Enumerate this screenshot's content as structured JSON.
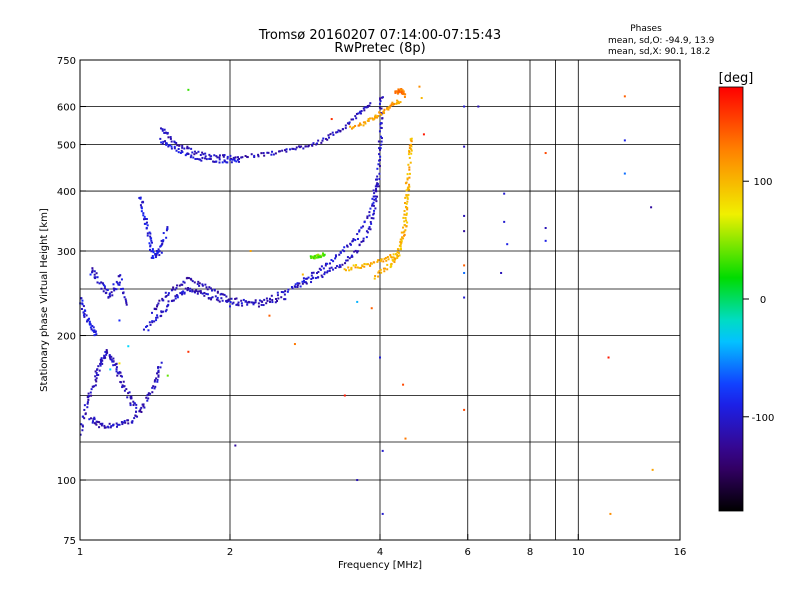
{
  "header": {
    "title_line1": "Tromsø 20160207 07:14:00-07:15:43",
    "title_line2": "RwPretec (8p)"
  },
  "stats": {
    "heading": "Phases",
    "line_o": "mean, sd,O: -94.9, 13.9",
    "line_x": "mean, sd,X:  90.1, 18.2"
  },
  "colorbar": {
    "label": "[deg]",
    "range": [
      -180,
      180
    ],
    "ticks": [
      {
        "value": 100,
        "label": "100"
      },
      {
        "value": 0,
        "label": "0"
      },
      {
        "value": -100,
        "label": "-100"
      }
    ]
  },
  "chart_data": {
    "type": "scatter",
    "title": "Tromsø 20160207 07:14:00-07:15:43",
    "subtitle": "RwPretec (8p)",
    "xlabel": "Frequency [MHz]",
    "ylabel": "Stationary phase Virtual Height [km]",
    "x_scale": "log",
    "y_scale": "log",
    "xlim": [
      1,
      16
    ],
    "ylim": [
      75,
      750
    ],
    "grid": true,
    "x_ticks": [
      {
        "value": 1,
        "label": "1"
      },
      {
        "value": 2,
        "label": "2"
      },
      {
        "value": 4,
        "label": "4"
      },
      {
        "value": 6,
        "label": "6"
      },
      {
        "value": 8,
        "label": "8"
      },
      {
        "value": 10,
        "label": "10"
      },
      {
        "value": 16,
        "label": "16"
      }
    ],
    "y_ticks": [
      {
        "value": 75,
        "label": "75"
      },
      {
        "value": 100,
        "label": "100"
      },
      {
        "value": 200,
        "label": "200"
      },
      {
        "value": 300,
        "label": "300"
      },
      {
        "value": 400,
        "label": "400"
      },
      {
        "value": 500,
        "label": "500"
      },
      {
        "value": 600,
        "label": "600"
      },
      {
        "value": 750,
        "label": "750"
      }
    ],
    "x_grid": [
      1,
      2,
      4,
      6,
      8,
      9,
      10,
      16
    ],
    "y_grid": [
      75,
      100,
      120,
      150,
      200,
      250,
      300,
      400,
      500,
      600,
      750
    ],
    "color_variable": "phase (deg)",
    "traces": [
      {
        "phase": -110,
        "spread": 0.018,
        "points": [
          [
            1.0,
            125
          ],
          [
            1.03,
            145
          ],
          [
            1.07,
            160
          ],
          [
            1.1,
            175
          ],
          [
            1.13,
            185
          ],
          [
            1.16,
            178
          ],
          [
            1.2,
            165
          ],
          [
            1.25,
            150
          ],
          [
            1.3,
            140
          ]
        ]
      },
      {
        "phase": -108,
        "spread": 0.015,
        "points": [
          [
            1.05,
            135
          ],
          [
            1.1,
            130
          ],
          [
            1.18,
            130
          ],
          [
            1.28,
            133
          ],
          [
            1.35,
            145
          ],
          [
            1.42,
            160
          ],
          [
            1.45,
            175
          ]
        ]
      },
      {
        "phase": -105,
        "spread": 0.014,
        "points": [
          [
            1.35,
            205
          ],
          [
            1.45,
            222
          ],
          [
            1.55,
            240
          ],
          [
            1.65,
            250
          ],
          [
            1.75,
            245
          ],
          [
            1.9,
            238
          ],
          [
            2.1,
            232
          ],
          [
            2.4,
            238
          ],
          [
            2.7,
            252
          ],
          [
            3.0,
            265
          ],
          [
            3.3,
            278
          ],
          [
            3.6,
            300
          ],
          [
            3.85,
            340
          ],
          [
            3.95,
            400
          ],
          [
            4.0,
            480
          ],
          [
            4.02,
            560
          ],
          [
            4.03,
            640
          ]
        ]
      },
      {
        "phase": -112,
        "spread": 0.012,
        "points": [
          [
            1.4,
            225
          ],
          [
            1.5,
            245
          ],
          [
            1.65,
            262
          ],
          [
            1.8,
            252
          ],
          [
            2.0,
            238
          ],
          [
            2.3,
            232
          ],
          [
            2.6,
            240
          ]
        ]
      },
      {
        "phase": -100,
        "spread": 0.011,
        "points": [
          [
            2.7,
            255
          ],
          [
            3.0,
            272
          ],
          [
            3.3,
            295
          ],
          [
            3.6,
            320
          ],
          [
            3.85,
            370
          ],
          [
            3.95,
            430
          ]
        ]
      },
      {
        "phase": -110,
        "spread": 0.012,
        "points": [
          [
            1.45,
            545
          ],
          [
            1.55,
            505
          ],
          [
            1.7,
            480
          ],
          [
            1.9,
            472
          ],
          [
            2.1,
            470
          ],
          [
            2.4,
            478
          ],
          [
            2.7,
            490
          ],
          [
            3.0,
            505
          ],
          [
            3.3,
            530
          ],
          [
            3.6,
            575
          ],
          [
            3.85,
            610
          ]
        ]
      },
      {
        "phase": -100,
        "spread": 0.01,
        "points": [
          [
            1.45,
            510
          ],
          [
            1.55,
            490
          ],
          [
            1.7,
            468
          ],
          [
            1.9,
            462
          ],
          [
            2.1,
            462
          ]
        ]
      },
      {
        "phase": -95,
        "spread": 0.016,
        "points": [
          [
            1.32,
            390
          ],
          [
            1.35,
            350
          ],
          [
            1.38,
            320
          ],
          [
            1.4,
            290
          ],
          [
            1.45,
            300
          ],
          [
            1.5,
            340
          ]
        ]
      },
      {
        "phase": -105,
        "spread": 0.02,
        "points": [
          [
            1.05,
            275
          ],
          [
            1.1,
            255
          ],
          [
            1.15,
            240
          ],
          [
            1.2,
            265
          ],
          [
            1.25,
            228
          ]
        ]
      },
      {
        "phase": -95,
        "spread": 0.015,
        "points": [
          [
            1.0,
            240
          ],
          [
            1.02,
            220
          ],
          [
            1.05,
            210
          ],
          [
            1.08,
            200
          ]
        ]
      },
      {
        "phase": 105,
        "spread": 0.012,
        "points": [
          [
            3.4,
            275
          ],
          [
            3.7,
            280
          ],
          [
            4.0,
            285
          ],
          [
            4.3,
            295
          ],
          [
            4.5,
            330
          ],
          [
            4.55,
            400
          ],
          [
            4.6,
            480
          ],
          [
            4.62,
            520
          ]
        ]
      },
      {
        "phase": 100,
        "spread": 0.014,
        "points": [
          [
            3.9,
            265
          ],
          [
            4.2,
            280
          ],
          [
            4.4,
            300
          ],
          [
            4.5,
            360
          ],
          [
            4.55,
            430
          ]
        ]
      },
      {
        "phase": 110,
        "spread": 0.012,
        "points": [
          [
            3.5,
            540
          ],
          [
            3.8,
            560
          ],
          [
            4.0,
            580
          ],
          [
            4.2,
            600
          ],
          [
            4.4,
            620
          ]
        ]
      },
      {
        "phase": 40,
        "spread": 0.01,
        "points": [
          [
            2.9,
            290
          ],
          [
            3.0,
            292
          ],
          [
            3.1,
            295
          ]
        ]
      },
      {
        "phase": 130,
        "spread": 0.01,
        "points": [
          [
            4.3,
            640
          ],
          [
            4.4,
            650
          ],
          [
            4.5,
            630
          ]
        ]
      }
    ],
    "scattered_points": [
      [
        1.65,
        650,
        30
      ],
      [
        2.05,
        118,
        -120
      ],
      [
        2.7,
        192,
        130
      ],
      [
        3.4,
        150,
        170
      ],
      [
        3.6,
        235,
        -40
      ],
      [
        3.6,
        100,
        -110
      ],
      [
        3.85,
        228,
        140
      ],
      [
        4.05,
        85,
        -100
      ],
      [
        4.5,
        122,
        130
      ],
      [
        5.9,
        140,
        150
      ],
      [
        5.9,
        240,
        -100
      ],
      [
        5.9,
        355,
        -110
      ],
      [
        5.9,
        330,
        -120
      ],
      [
        7.1,
        345,
        -100
      ],
      [
        7.1,
        395,
        -100
      ],
      [
        7.2,
        310,
        -90
      ],
      [
        8.6,
        480,
        150
      ],
      [
        8.6,
        335,
        -110
      ],
      [
        8.6,
        315,
        -90
      ],
      [
        11.5,
        180,
        170
      ],
      [
        11.6,
        85,
        120
      ],
      [
        12.4,
        630,
        140
      ],
      [
        12.4,
        510,
        -90
      ],
      [
        12.4,
        435,
        -60
      ],
      [
        14.0,
        370,
        -120
      ],
      [
        14.1,
        105,
        110
      ],
      [
        5.9,
        600,
        -100
      ],
      [
        5.9,
        495,
        -110
      ],
      [
        6.3,
        600,
        -110
      ],
      [
        4.0,
        180,
        -95
      ],
      [
        4.05,
        115,
        -100
      ],
      [
        4.45,
        158,
        150
      ],
      [
        1.65,
        185,
        160
      ],
      [
        1.2,
        175,
        80
      ],
      [
        1.05,
        268,
        -80
      ],
      [
        1.5,
        165,
        40
      ],
      [
        1.25,
        190,
        -30
      ],
      [
        2.8,
        268,
        100
      ],
      [
        2.2,
        300,
        110
      ],
      [
        4.9,
        525,
        170
      ],
      [
        3.2,
        565,
        160
      ],
      [
        4.8,
        660,
        120
      ],
      [
        4.85,
        625,
        100
      ],
      [
        2.0,
        230,
        -95
      ],
      [
        2.4,
        220,
        140
      ],
      [
        5.9,
        280,
        140
      ],
      [
        5.9,
        270,
        -60
      ],
      [
        7.0,
        270,
        -110
      ],
      [
        1.2,
        215,
        -80
      ],
      [
        1.15,
        170,
        -30
      ]
    ]
  }
}
